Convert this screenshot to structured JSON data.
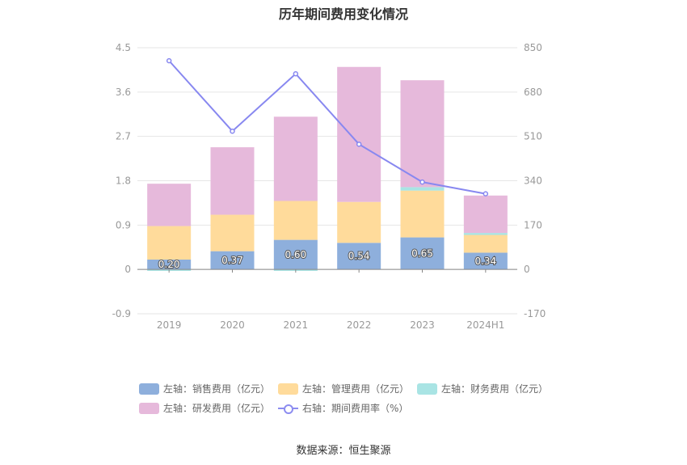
{
  "title": "历年期间费用变化情况",
  "source": "数据来源：恒生聚源",
  "chart_data": {
    "type": "bar",
    "stacked": true,
    "categories": [
      "2019",
      "2020",
      "2021",
      "2022",
      "2023",
      "2024H1"
    ],
    "left_axis": {
      "ylim": [
        -0.9,
        4.5
      ],
      "ticks": [
        "4.5",
        "3.6",
        "2.7",
        "1.8",
        "0.9",
        "0",
        "-0.9"
      ]
    },
    "right_axis": {
      "ylim": [
        -170,
        850
      ],
      "ticks": [
        "850",
        "680",
        "510",
        "340",
        "170",
        "0",
        "-170"
      ]
    },
    "series": [
      {
        "name": "左轴：销售费用（亿元）",
        "color": "#8eafdc",
        "values": [
          0.2,
          0.37,
          0.6,
          0.54,
          0.65,
          0.34
        ],
        "labels": [
          "0.20",
          "0.37",
          "0.60",
          "0.54",
          "0.65",
          "0.34"
        ]
      },
      {
        "name": "左轴：管理费用（亿元）",
        "color": "#ffdb9b",
        "values": [
          0.68,
          0.74,
          0.79,
          0.83,
          0.95,
          0.36
        ]
      },
      {
        "name": "左轴：财务费用（亿元）",
        "color": "#a9e4e4",
        "values": [
          -0.03,
          0.0,
          -0.03,
          0.0,
          0.07,
          0.04
        ]
      },
      {
        "name": "左轴：研发费用（亿元）",
        "color": "#e6b9db",
        "values": [
          0.86,
          1.37,
          1.71,
          2.74,
          2.17,
          0.76
        ]
      }
    ],
    "line_series": {
      "name": "右轴：期间费用率（%）",
      "color": "#8888f0",
      "values": [
        800,
        530,
        750,
        480,
        335,
        290
      ]
    },
    "legend_position": "bottom",
    "grid": true
  }
}
